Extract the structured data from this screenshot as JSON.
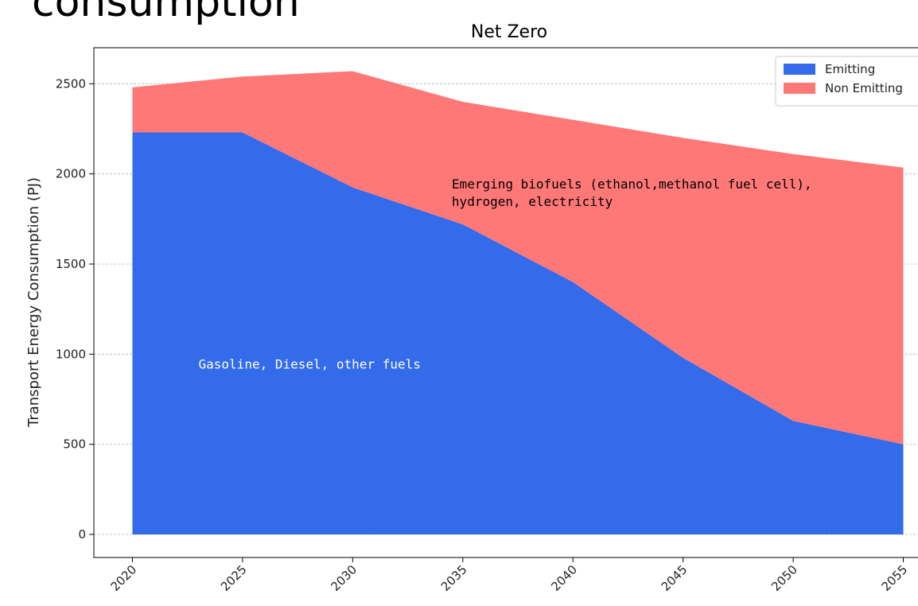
{
  "page_title": "consumption",
  "chart_data": {
    "type": "stacked_area",
    "title": "Net Zero",
    "y_label": "Transport Energy Consumption (PJ)",
    "x": [
      2020,
      2025,
      2030,
      2035,
      2040,
      2045,
      2050,
      2055
    ],
    "series": [
      {
        "name": "Emitting",
        "color": "#346beb",
        "values": [
          2230,
          2230,
          1925,
          1720,
          1400,
          980,
          630,
          500
        ]
      },
      {
        "name": "Non Emitting",
        "color": "#ff7878",
        "values": [
          250,
          310,
          645,
          680,
          900,
          1220,
          1480,
          1535
        ]
      }
    ],
    "xlim": [
      2018.25,
      2056.75
    ],
    "xticks": [
      2020,
      2025,
      2030,
      2035,
      2040,
      2045,
      2050,
      2055
    ],
    "ylim": [
      -128,
      2700
    ],
    "yticks": [
      0,
      500,
      1000,
      1500,
      2000,
      2500
    ],
    "grid": "y",
    "legend": "upper right",
    "annotations": [
      {
        "lines": [
          "Emerging biofuels (ethanol,methanol fuel cell),",
          "hydrogen, electricity"
        ],
        "x": 2034.5,
        "y": 1920,
        "color": "#000000"
      },
      {
        "lines": [
          "Gasoline, Diesel, other fuels"
        ],
        "x": 2023,
        "y": 920,
        "color": "#ffffff"
      }
    ]
  }
}
